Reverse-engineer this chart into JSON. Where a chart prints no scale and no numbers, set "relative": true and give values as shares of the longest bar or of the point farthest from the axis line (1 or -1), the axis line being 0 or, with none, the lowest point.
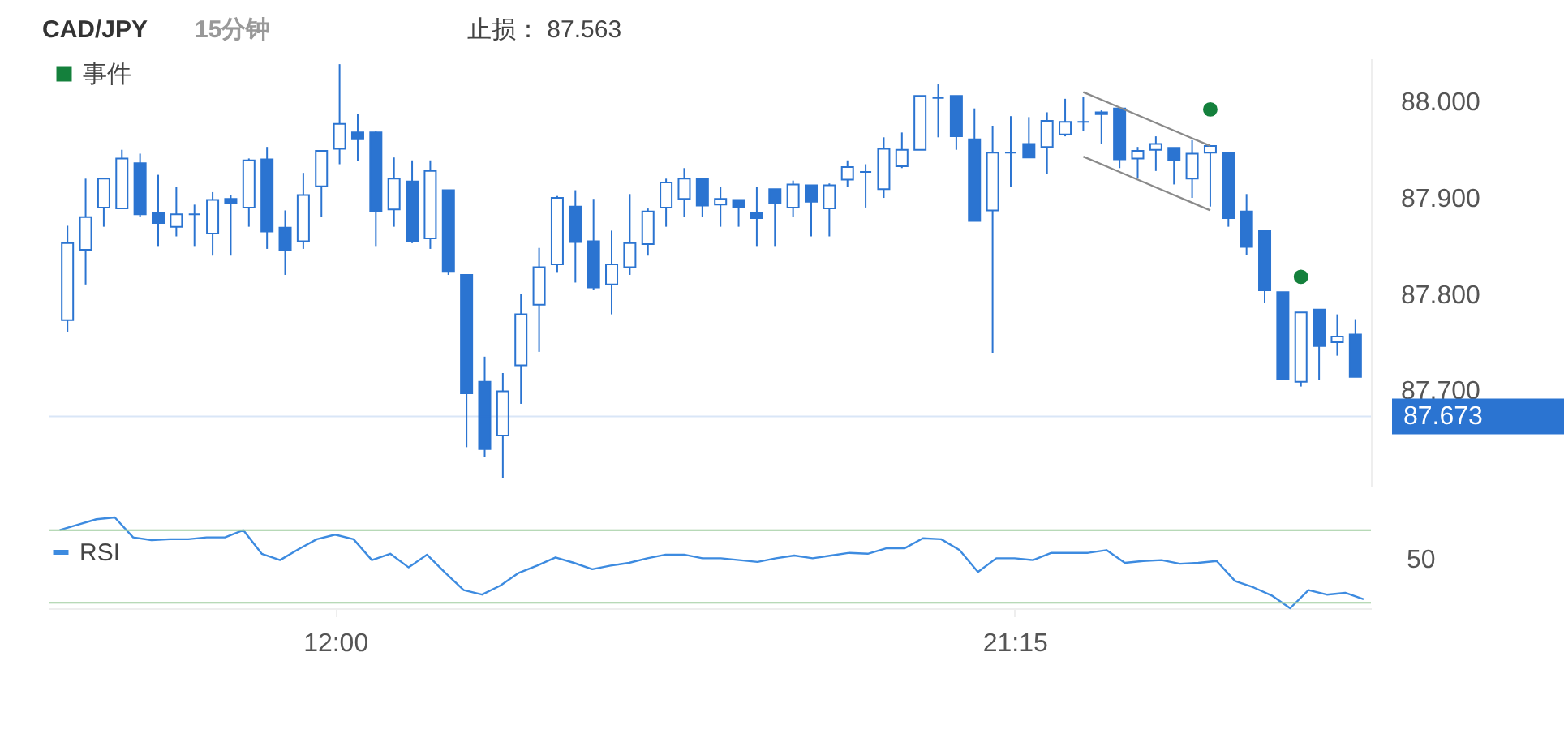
{
  "chart_data": [
    {
      "type": "candlestick",
      "title": "CAD/JPY",
      "subtitle": "15分钟",
      "annotations": [
        "止损： 87.563"
      ],
      "color": "#2b74d1",
      "categories": [
        null,
        null,
        null,
        null,
        null,
        null,
        null,
        null,
        null,
        null,
        null,
        null,
        null,
        null,
        null,
        null,
        null,
        null,
        null,
        null,
        null,
        null,
        null,
        null,
        null,
        null,
        null,
        null,
        null,
        null,
        null,
        null,
        null,
        null,
        null,
        null,
        null,
        null,
        null,
        null,
        null,
        null,
        null,
        null,
        null,
        null,
        null,
        null,
        null,
        null,
        null,
        null,
        null,
        null,
        null,
        null,
        null,
        null,
        null,
        null,
        null,
        null,
        null,
        null,
        null,
        null,
        null,
        null,
        null,
        null,
        null,
        null
      ],
      "ohlc": [
        [
          87.773,
          87.871,
          87.761,
          87.853
        ],
        [
          87.846,
          87.92,
          87.81,
          87.88
        ],
        [
          87.89,
          87.921,
          87.87,
          87.92
        ],
        [
          87.889,
          87.95,
          87.889,
          87.941
        ],
        [
          87.936,
          87.946,
          87.88,
          87.883
        ],
        [
          87.884,
          87.924,
          87.85,
          87.874
        ],
        [
          87.87,
          87.911,
          87.86,
          87.883
        ],
        [
          87.883,
          87.893,
          87.85,
          87.883
        ],
        [
          87.863,
          87.906,
          87.84,
          87.898
        ],
        [
          87.899,
          87.903,
          87.84,
          87.895
        ],
        [
          87.89,
          87.941,
          87.87,
          87.939
        ],
        [
          87.94,
          87.953,
          87.847,
          87.865
        ],
        [
          87.869,
          87.887,
          87.82,
          87.846
        ],
        [
          87.855,
          87.926,
          87.847,
          87.903
        ],
        [
          87.912,
          87.949,
          87.88,
          87.949
        ],
        [
          87.951,
          88.039,
          87.935,
          87.977
        ],
        [
          87.968,
          87.987,
          87.938,
          87.961
        ],
        [
          87.968,
          87.97,
          87.85,
          87.886
        ],
        [
          87.888,
          87.942,
          87.87,
          87.92
        ],
        [
          87.917,
          87.939,
          87.853,
          87.855
        ],
        [
          87.858,
          87.939,
          87.847,
          87.928
        ],
        [
          87.908,
          87.908,
          87.82,
          87.824
        ],
        [
          87.82,
          87.82,
          87.641,
          87.697
        ],
        [
          87.709,
          87.735,
          87.631,
          87.639
        ],
        [
          87.653,
          87.718,
          87.609,
          87.699
        ],
        [
          87.726,
          87.8,
          87.686,
          87.779
        ],
        [
          87.789,
          87.848,
          87.74,
          87.828
        ],
        [
          87.831,
          87.902,
          87.823,
          87.9
        ],
        [
          87.891,
          87.908,
          87.812,
          87.854
        ],
        [
          87.855,
          87.899,
          87.804,
          87.807
        ],
        [
          87.81,
          87.866,
          87.779,
          87.831
        ],
        [
          87.828,
          87.904,
          87.82,
          87.853
        ],
        [
          87.852,
          87.889,
          87.84,
          87.886
        ],
        [
          87.89,
          87.92,
          87.87,
          87.916
        ],
        [
          87.899,
          87.931,
          87.88,
          87.92
        ],
        [
          87.92,
          87.921,
          87.88,
          87.892
        ],
        [
          87.893,
          87.911,
          87.87,
          87.899
        ],
        [
          87.898,
          87.898,
          87.87,
          87.89
        ],
        [
          87.884,
          87.911,
          87.85,
          87.879
        ],
        [
          87.909,
          87.909,
          87.85,
          87.895
        ],
        [
          87.89,
          87.918,
          87.88,
          87.914
        ],
        [
          87.913,
          87.913,
          87.86,
          87.896
        ],
        [
          87.889,
          87.915,
          87.86,
          87.913
        ],
        [
          87.919,
          87.939,
          87.911,
          87.932
        ],
        [
          87.927,
          87.935,
          87.89,
          87.927
        ],
        [
          87.909,
          87.963,
          87.9,
          87.951
        ],
        [
          87.933,
          87.968,
          87.931,
          87.95
        ],
        [
          87.95,
          88.006,
          87.95,
          88.006
        ],
        [
          88.004,
          88.018,
          87.963,
          88.004
        ],
        [
          88.006,
          88.006,
          87.95,
          87.964
        ],
        [
          87.961,
          87.993,
          87.876,
          87.876
        ],
        [
          87.887,
          87.975,
          87.739,
          87.947
        ],
        [
          87.947,
          87.985,
          87.911,
          87.947
        ],
        [
          87.956,
          87.984,
          87.942,
          87.942
        ],
        [
          87.953,
          87.989,
          87.925,
          87.98
        ],
        [
          87.966,
          88.003,
          87.964,
          87.979
        ],
        [
          87.979,
          88.005,
          87.97,
          87.979
        ],
        [
          87.989,
          87.991,
          87.956,
          87.987
        ],
        [
          87.993,
          87.993,
          87.931,
          87.94
        ],
        [
          87.941,
          87.953,
          87.92,
          87.949
        ],
        [
          87.95,
          87.964,
          87.928,
          87.956
        ],
        [
          87.952,
          87.952,
          87.914,
          87.939
        ],
        [
          87.92,
          87.96,
          87.9,
          87.946
        ],
        [
          87.947,
          87.954,
          87.891,
          87.954
        ],
        [
          87.947,
          87.947,
          87.87,
          87.879
        ],
        [
          87.886,
          87.904,
          87.841,
          87.849
        ],
        [
          87.866,
          87.866,
          87.791,
          87.804
        ],
        [
          87.802,
          87.802,
          87.712,
          87.712
        ],
        [
          87.709,
          87.781,
          87.704,
          87.781
        ],
        [
          87.784,
          87.784,
          87.711,
          87.746
        ],
        [
          87.75,
          87.779,
          87.736,
          87.756
        ],
        [
          87.758,
          87.774,
          87.714,
          87.714
        ]
      ],
      "series": [
        {
          "name": "事件",
          "type": "scatter",
          "color": "#14803c",
          "values": [
            null,
            null,
            null,
            null,
            null,
            null,
            null,
            null,
            null,
            null,
            null,
            null,
            null,
            null,
            null,
            null,
            null,
            null,
            null,
            null,
            null,
            null,
            null,
            null,
            null,
            null,
            null,
            null,
            null,
            null,
            null,
            null,
            null,
            null,
            null,
            null,
            null,
            null,
            null,
            null,
            null,
            null,
            null,
            null,
            null,
            null,
            null,
            null,
            null,
            null,
            null,
            null,
            null,
            null,
            null,
            null,
            null,
            null,
            null,
            null,
            null,
            null,
            null,
            87.992,
            null,
            null,
            null,
            null,
            87.818,
            null,
            null,
            null
          ]
        },
        {
          "type": "line",
          "color": "#8a8a8a",
          "values": [
            null,
            null,
            null,
            null,
            null,
            null,
            null,
            null,
            null,
            null,
            null,
            null,
            null,
            null,
            null,
            null,
            null,
            null,
            null,
            null,
            null,
            null,
            null,
            null,
            null,
            null,
            null,
            null,
            null,
            null,
            null,
            null,
            null,
            null,
            null,
            null,
            null,
            null,
            null,
            null,
            null,
            null,
            null,
            null,
            null,
            null,
            null,
            null,
            null,
            null,
            null,
            null,
            null,
            null,
            null,
            null,
            88.01,
            88.002,
            87.994,
            87.986,
            87.978,
            87.97,
            87.962,
            87.954,
            null,
            null,
            null,
            null,
            null,
            null,
            null,
            null
          ]
        },
        {
          "type": "line",
          "color": "#8a8a8a",
          "values": [
            null,
            null,
            null,
            null,
            null,
            null,
            null,
            null,
            null,
            null,
            null,
            null,
            null,
            null,
            null,
            null,
            null,
            null,
            null,
            null,
            null,
            null,
            null,
            null,
            null,
            null,
            null,
            null,
            null,
            null,
            null,
            null,
            null,
            null,
            null,
            null,
            null,
            null,
            null,
            null,
            null,
            null,
            null,
            null,
            null,
            null,
            null,
            null,
            null,
            null,
            null,
            null,
            null,
            null,
            null,
            null,
            87.943,
            87.935,
            87.927,
            87.919,
            87.911,
            87.903,
            87.895,
            87.887,
            null,
            null,
            null,
            null,
            null,
            null,
            null,
            null
          ]
        }
      ],
      "ref_lines": [
        {
          "axis": "y",
          "value": 87.673,
          "label": "87.673",
          "color": "#2b74d1"
        }
      ],
      "ylim": [
        87.6,
        88.045
      ],
      "yticks": [
        {
          "value": 87.7,
          "label": "87.700"
        },
        {
          "value": 87.8,
          "label": "87.800"
        },
        {
          "value": 87.9,
          "label": "87.900"
        },
        {
          "value": 88,
          "label": "88.000"
        }
      ],
      "legend": "top left",
      "tick_labels": "y"
    },
    {
      "type": "line",
      "relative": true,
      "x": [
        8.25,
        8.5,
        8.75,
        9,
        9.25,
        9.5,
        9.75,
        10,
        10.25,
        10.5,
        10.75,
        11,
        11.25,
        11.5,
        11.75,
        12,
        12.25,
        12.5,
        12.75,
        13,
        13.25,
        13.5,
        13.75,
        14,
        14.25,
        14.5,
        14.75,
        15,
        15.25,
        15.5,
        15.75,
        16,
        16.25,
        16.5,
        16.75,
        17,
        17.25,
        17.5,
        17.75,
        18,
        18.25,
        18.5,
        18.75,
        19,
        19.25,
        19.5,
        19.75,
        20,
        20.25,
        20.5,
        20.75,
        21,
        21.25,
        21.5,
        21.75,
        22,
        22.25,
        22.5,
        22.75,
        23,
        23.25,
        23.5,
        23.75,
        24,
        24.25,
        24.5,
        24.75,
        25,
        25.25,
        25.5,
        25.75,
        26
      ],
      "series": [
        {
          "name": "RSI",
          "color": "#3d8be0",
          "values": [
            0.86,
            0.92,
            0.98,
            1,
            0.78,
            0.75,
            0.76,
            0.76,
            0.78,
            0.78,
            0.86,
            0.6,
            0.53,
            0.65,
            0.76,
            0.81,
            0.76,
            0.53,
            0.6,
            0.45,
            0.59,
            0.39,
            0.2,
            0.15,
            0.25,
            0.39,
            0.47,
            0.56,
            0.5,
            0.43,
            0.47,
            0.5,
            0.55,
            0.59,
            0.59,
            0.55,
            0.55,
            0.53,
            0.51,
            0.55,
            0.58,
            0.55,
            0.58,
            0.61,
            0.6,
            0.66,
            0.66,
            0.77,
            0.76,
            0.64,
            0.4,
            0.55,
            0.55,
            0.53,
            0.61,
            0.61,
            0.61,
            0.64,
            0.5,
            0.52,
            0.53,
            0.49,
            0.5,
            0.52,
            0.3,
            0.23,
            0.14,
            0,
            0.2,
            0.15,
            0.17,
            0.1
          ]
        }
      ],
      "xlim": [
        8.1,
        26.1
      ],
      "xticks": [
        {
          "value": 12,
          "label": "12:00"
        },
        {
          "value": 21.25,
          "label": "21:15"
        }
      ],
      "ref_lines": [
        {
          "axis": "y",
          "value": 0.86,
          "color": "#9fcc9f"
        },
        {
          "axis": "y",
          "value": 0.06,
          "color": "#9fcc9f"
        }
      ],
      "annotations": [
        "50"
      ],
      "legend": "left",
      "tick_labels": "x"
    }
  ]
}
